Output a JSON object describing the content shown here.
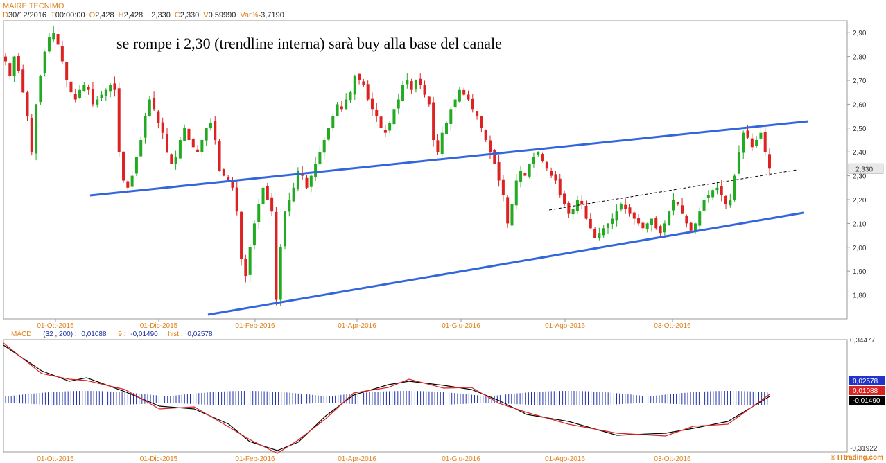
{
  "header": {
    "title": "MAIRE TECNIMO",
    "ohlc": [
      {
        "k": "D",
        "v": "30/12/2016"
      },
      {
        "k": "T",
        "v": "00:00:00"
      },
      {
        "k": "O",
        "v": "2,428"
      },
      {
        "k": "H",
        "v": "2,428"
      },
      {
        "k": "L",
        "v": "2,330"
      },
      {
        "k": "C",
        "v": "2,330"
      },
      {
        "k": "V",
        "v": "0,59990"
      },
      {
        "k": "Var%",
        "v": "-3,7190"
      }
    ]
  },
  "watermark": "© ITtrading.com",
  "chart_data": [
    {
      "type": "candlestick",
      "annotation": "se rompe i 2,30 (trendline interna) sarà buy alla base del canale",
      "ylim": [
        1.7,
        2.95
      ],
      "yticks": [
        "2,90",
        "2,80",
        "2,70",
        "2,60",
        "2,50",
        "2,40",
        "2,30",
        "2,20",
        "2,10",
        "2,00",
        "1,90",
        "1,80"
      ],
      "last_price_label": "2,330",
      "last_price": 2.33,
      "colors": {
        "up": "#22aa22",
        "down": "#dd2222",
        "trendline": "#3366dd",
        "dashed": "#000000",
        "text": "#e0801a"
      },
      "xlabels": [
        "01-Ott-2015",
        "01-Dic-2015",
        "01-Feb-2016",
        "01-Apr-2016",
        "01-Giu-2016",
        "01-Ago-2016",
        "03-Ott-2016"
      ],
      "closes": [
        2.78,
        2.72,
        2.8,
        2.74,
        2.65,
        2.55,
        2.4,
        2.6,
        2.72,
        2.82,
        2.88,
        2.9,
        2.85,
        2.78,
        2.7,
        2.65,
        2.62,
        2.66,
        2.68,
        2.66,
        2.6,
        2.62,
        2.64,
        2.66,
        2.68,
        2.66,
        2.4,
        2.28,
        2.25,
        2.3,
        2.38,
        2.45,
        2.55,
        2.62,
        2.58,
        2.52,
        2.48,
        2.4,
        2.35,
        2.38,
        2.45,
        2.5,
        2.45,
        2.42,
        2.4,
        2.45,
        2.5,
        2.52,
        2.45,
        2.32,
        2.3,
        2.28,
        2.25,
        2.15,
        1.95,
        1.88,
        2.0,
        2.1,
        2.18,
        2.25,
        2.2,
        2.15,
        1.78,
        2.0,
        2.15,
        2.2,
        2.25,
        2.32,
        2.3,
        2.25,
        2.3,
        2.35,
        2.4,
        2.45,
        2.5,
        2.55,
        2.6,
        2.58,
        2.62,
        2.65,
        2.72,
        2.7,
        2.68,
        2.62,
        2.58,
        2.55,
        2.5,
        2.48,
        2.52,
        2.58,
        2.62,
        2.68,
        2.7,
        2.66,
        2.7,
        2.68,
        2.64,
        2.6,
        2.45,
        2.4,
        2.48,
        2.52,
        2.58,
        2.62,
        2.66,
        2.64,
        2.62,
        2.58,
        2.55,
        2.5,
        2.45,
        2.4,
        2.35,
        2.28,
        2.22,
        2.1,
        2.18,
        2.28,
        2.32,
        2.3,
        2.35,
        2.38,
        2.4,
        2.36,
        2.33,
        2.3,
        2.28,
        2.22,
        2.18,
        2.14,
        2.16,
        2.2,
        2.18,
        2.12,
        2.08,
        2.04,
        2.06,
        2.08,
        2.1,
        2.12,
        2.15,
        2.18,
        2.16,
        2.14,
        2.12,
        2.1,
        2.08,
        2.1,
        2.12,
        2.08,
        2.06,
        2.1,
        2.15,
        2.2,
        2.18,
        2.14,
        2.1,
        2.07,
        2.1,
        2.15,
        2.2,
        2.22,
        2.24,
        2.25,
        2.22,
        2.18,
        2.2,
        2.3,
        2.4,
        2.48,
        2.46,
        2.42,
        2.45,
        2.48,
        2.4,
        2.33
      ]
    },
    {
      "type": "line",
      "label": "MACD",
      "params": "(32 , 200)",
      "value_label": "0,01088",
      "signal_label": "9",
      "signal_value": "-0,01490",
      "hist_label": "hist",
      "hist_value": "0,02578",
      "ylim_labels": [
        "0,34477",
        "-0,31922"
      ],
      "badges": [
        {
          "text": "0,02578",
          "color": "#2233cc"
        },
        {
          "text": "0,01088",
          "color": "#dd2222"
        },
        {
          "text": "-0,01490",
          "color": "#000000"
        }
      ],
      "xlabels": [
        "01-Ott-2015",
        "01-Dic-2015",
        "01-Feb-2016",
        "01-Apr-2016",
        "01-Giu-2016",
        "01-Ago-2016",
        "03-Ott-2016"
      ]
    }
  ]
}
